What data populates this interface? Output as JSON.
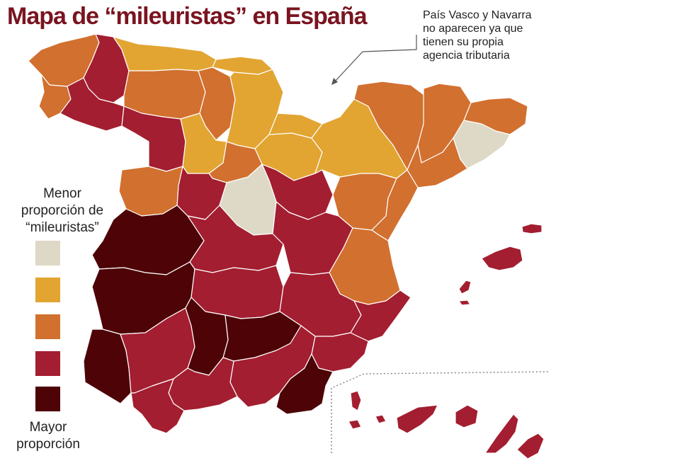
{
  "title": "Mapa de “mileuristas” en España",
  "note": {
    "lines": [
      "País Vasco y Navarra",
      "no aparecen ya que",
      "tienen su propia",
      "agencia tributaria"
    ]
  },
  "legend": {
    "top_lines": [
      "Menor",
      "proporción de",
      "“mileuristas”"
    ],
    "bottom_lines": [
      "Mayor",
      "proporción"
    ],
    "colors": [
      "#ddd9c6",
      "#e2a532",
      "#d2702f",
      "#a31e30",
      "#4e0407"
    ]
  },
  "categories": {
    "class1": "#ddd9c6",
    "class2": "#e2a532",
    "class3": "#d2702f",
    "class4": "#a31e30",
    "class5": "#4e0407"
  }
}
